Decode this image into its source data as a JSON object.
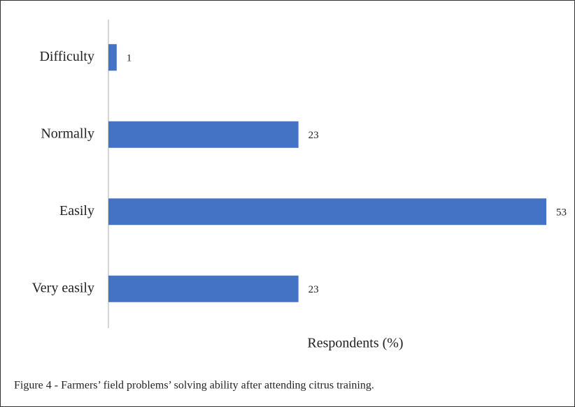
{
  "chart_data": {
    "type": "barh",
    "caption": "Figure 4 - Farmers’ field problems’ solving ability after attending citrus training.",
    "xlabel": "Respondents (%)",
    "categories": [
      "Difficulty",
      "Normally",
      "Easily",
      "Very easily"
    ],
    "values": [
      1,
      23,
      53,
      23
    ],
    "color": "#4472c4",
    "xlim": [
      0,
      53
    ]
  }
}
